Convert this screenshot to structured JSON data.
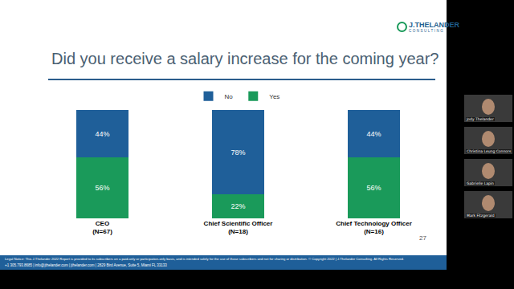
{
  "chart_data": {
    "type": "bar",
    "title": "Did you receive a salary increase for the coming year?",
    "categories": [
      "CEO\n(N=67)",
      "Chief Scientific Officer\n(N=18)",
      "Chief Technology Officer\n(N=16)"
    ],
    "series": [
      {
        "name": "Yes",
        "color": "#1a9a5a",
        "values": [
          56,
          22,
          56
        ],
        "value_labels": [
          "56%",
          "22%",
          "56%"
        ]
      },
      {
        "name": "No",
        "color": "#1f5f99",
        "values": [
          44,
          78,
          44
        ],
        "value_labels": [
          "44%",
          "78%",
          "44%"
        ]
      }
    ],
    "stacked": true,
    "data_labels": true,
    "legend": "top",
    "grid": false,
    "tick_labels": "x",
    "ylim": [
      0,
      100
    ]
  },
  "slide": {
    "logo": [
      "J.THELANDER",
      "CONSULTING"
    ],
    "page_number": "27",
    "footer": [
      "Legal Notice: This J.Thelander 2022 Report is provided to its subscribers on a paid-only or participation-only basis, and is intended solely for the use of those subscribers and not for sharing or distribution. © Copyright 2022 | J.Thelander Consulting. All Rights Reserved.",
      "+1 305.793.8685  |  info@jthelander.com  |  jthelander.com  |  2829 Bird Avenue, Suite 5, Miami FL 33133"
    ],
    "participants": [
      "Jody Thelander",
      "Christina Leung Connors",
      "Gabrielle Lapin",
      "Mark Fitzgerald"
    ]
  }
}
